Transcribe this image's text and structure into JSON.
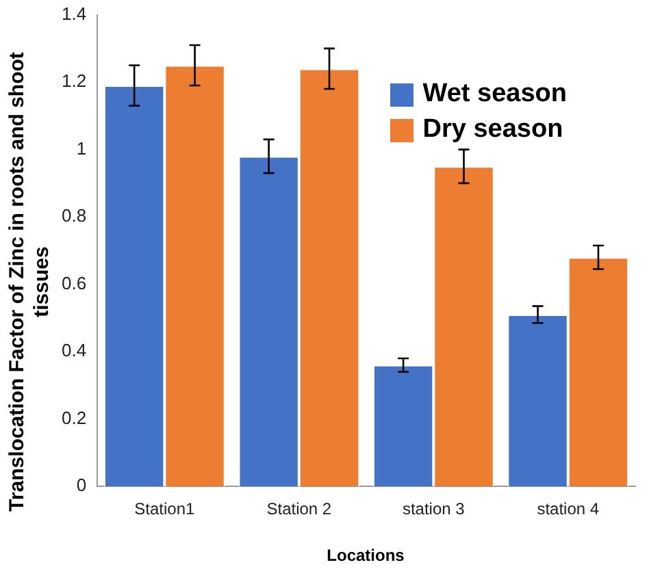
{
  "chart_data": {
    "type": "bar",
    "xlabel": "Locations",
    "ylabel": "Translocation Factor of Zinc in roots and shoot tissues",
    "categories": [
      "Station1",
      "Station 2",
      "station 3",
      "station 4"
    ],
    "series": [
      {
        "name": "Wet season",
        "color": "#4472c4",
        "values": [
          1.19,
          0.98,
          0.36,
          0.51
        ],
        "errors": [
          0.06,
          0.05,
          0.02,
          0.025
        ]
      },
      {
        "name": "Dry season",
        "color": "#ed7d31",
        "values": [
          1.25,
          1.24,
          0.95,
          0.68
        ],
        "errors": [
          0.06,
          0.06,
          0.05,
          0.035
        ]
      }
    ],
    "ylim": [
      0,
      1.4
    ],
    "yticks": [
      0,
      0.2,
      0.4,
      0.6,
      0.8,
      1,
      1.2,
      1.4
    ],
    "grid": false,
    "legend": "top right"
  }
}
